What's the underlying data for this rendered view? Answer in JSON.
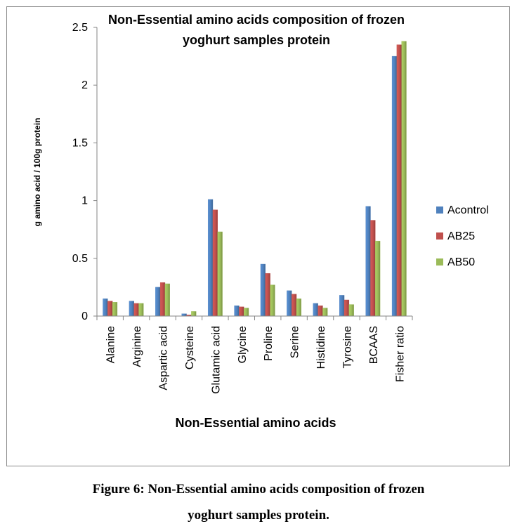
{
  "chart_data": {
    "type": "bar",
    "title_lines": [
      "Non-Essential amino acids composition of frozen",
      "yoghurt samples protein"
    ],
    "xlabel": "Non-Essential amino acids",
    "ylabel": "g amino acid / 100g protein",
    "ylim": [
      0,
      2.5
    ],
    "yticks": [
      "0",
      "0.5",
      "1",
      "1.5",
      "2",
      "2.5"
    ],
    "grid": false,
    "legend_position": "right",
    "categories": [
      "Alanine",
      "Arginine",
      "Aspartic acid",
      "Cysteine",
      "Glutamic acid",
      "Glycine",
      "Proline",
      "Serine",
      "Histidine",
      "Tyrosine",
      "BCAAS",
      "Fisher ratio"
    ],
    "series": [
      {
        "name": "Acontrol",
        "color": "#4f81bd",
        "values": [
          0.15,
          0.13,
          0.25,
          0.02,
          1.01,
          0.09,
          0.45,
          0.22,
          0.11,
          0.18,
          0.95,
          2.25
        ]
      },
      {
        "name": "AB25",
        "color": "#c0504d",
        "values": [
          0.13,
          0.11,
          0.29,
          0.01,
          0.92,
          0.08,
          0.37,
          0.19,
          0.09,
          0.14,
          0.83,
          2.35
        ]
      },
      {
        "name": "AB50",
        "color": "#9bbb59",
        "values": [
          0.12,
          0.11,
          0.28,
          0.04,
          0.73,
          0.07,
          0.27,
          0.15,
          0.07,
          0.1,
          0.65,
          2.38
        ]
      }
    ]
  },
  "caption": {
    "line1": "Figure 6: Non-Essential amino acids composition of frozen",
    "line2": "yoghurt samples protein."
  }
}
